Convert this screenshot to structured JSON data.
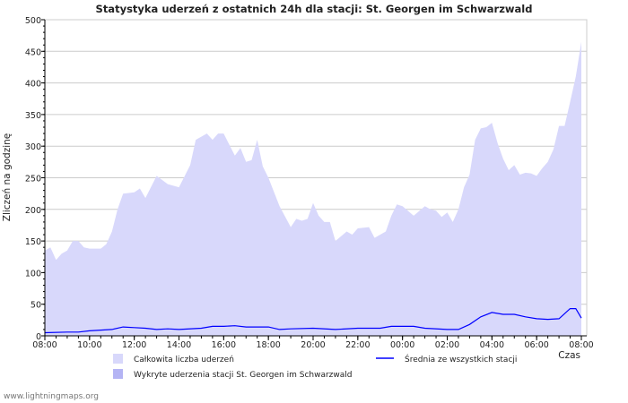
{
  "chart_data": {
    "type": "area",
    "title": "Statystyka uderzeń z ostatnich 24h dla stacji: St. Georgen im Schwarzwald",
    "xlabel": "Czas",
    "ylabel": "Zliczeń na godzinę",
    "ylim": [
      0,
      500
    ],
    "yticks": [
      "0",
      "50",
      "100",
      "150",
      "200",
      "250",
      "300",
      "350",
      "400",
      "450",
      "500"
    ],
    "xticks": [
      "08:00",
      "10:00",
      "12:00",
      "14:00",
      "16:00",
      "18:00",
      "20:00",
      "22:00",
      "00:00",
      "02:00",
      "04:00",
      "06:00",
      "08:00"
    ],
    "x_unit": "hours since 08:00",
    "grid": true,
    "legend_position": "bottom",
    "series": [
      {
        "name": "Całkowita liczba uderzeń",
        "kind": "area",
        "color": "#d8d8fb",
        "x": [
          0,
          0.25,
          0.5,
          0.75,
          1,
          1.25,
          1.5,
          1.75,
          2,
          2.5,
          2.75,
          3,
          3.25,
          3.5,
          4,
          4.25,
          4.5,
          5,
          5.5,
          6,
          6.5,
          6.75,
          7,
          7.25,
          7.5,
          7.75,
          8,
          8.5,
          8.75,
          9,
          9.25,
          9.5,
          9.75,
          10,
          10.5,
          11,
          11.25,
          11.5,
          11.75,
          12,
          12.25,
          12.5,
          12.75,
          13,
          13.5,
          13.75,
          14,
          14.5,
          14.75,
          15,
          15.25,
          15.5,
          15.75,
          16,
          16.5,
          17,
          17.25,
          17.5,
          17.75,
          18,
          18.25,
          18.5,
          18.75,
          19,
          19.25,
          19.5,
          19.75,
          20,
          20.25,
          20.5,
          20.75,
          21,
          21.25,
          21.5,
          21.75,
          22,
          22.25,
          22.5,
          22.75,
          23,
          23.25,
          23.5,
          23.75,
          24
        ],
        "values": [
          135,
          140,
          120,
          130,
          135,
          150,
          150,
          140,
          138,
          138,
          145,
          165,
          200,
          225,
          227,
          233,
          218,
          253,
          240,
          235,
          270,
          310,
          315,
          320,
          310,
          320,
          320,
          285,
          297,
          275,
          278,
          310,
          268,
          250,
          205,
          172,
          185,
          182,
          185,
          210,
          190,
          180,
          180,
          150,
          165,
          160,
          170,
          172,
          155,
          160,
          165,
          190,
          208,
          205,
          190,
          205,
          200,
          198,
          188,
          195,
          180,
          200,
          235,
          255,
          310,
          328,
          330,
          337,
          305,
          280,
          262,
          270,
          255,
          258,
          257,
          253,
          265,
          275,
          295,
          332,
          332,
          370,
          410,
          465
        ]
      },
      {
        "name": "Wykryte uderzenia stacji St. Georgen im Schwarzwald",
        "kind": "area",
        "color": "#b4b4f4",
        "x": [],
        "values": []
      },
      {
        "name": "Średnia ze wszystkich stacji",
        "kind": "line",
        "color": "#0000ff",
        "x": [
          0,
          1,
          1.5,
          2,
          3,
          3.5,
          4,
          4.5,
          5,
          5.5,
          6,
          7,
          7.5,
          8,
          8.5,
          9,
          10,
          10.5,
          11,
          12,
          13,
          14,
          15,
          15.5,
          16.5,
          17,
          18,
          18.5,
          19,
          19.5,
          20,
          20.5,
          21,
          21.5,
          22,
          22.5,
          23,
          23.5,
          23.75,
          24
        ],
        "values": [
          5,
          6,
          6,
          8,
          10,
          14,
          13,
          12,
          10,
          11,
          10,
          12,
          15,
          15,
          16,
          14,
          14,
          10,
          11,
          12,
          10,
          12,
          12,
          15,
          15,
          12,
          10,
          10,
          18,
          30,
          37,
          34,
          34,
          30,
          27,
          26,
          27,
          43,
          43,
          28
        ]
      }
    ]
  },
  "footer": "www.lightningmaps.org"
}
